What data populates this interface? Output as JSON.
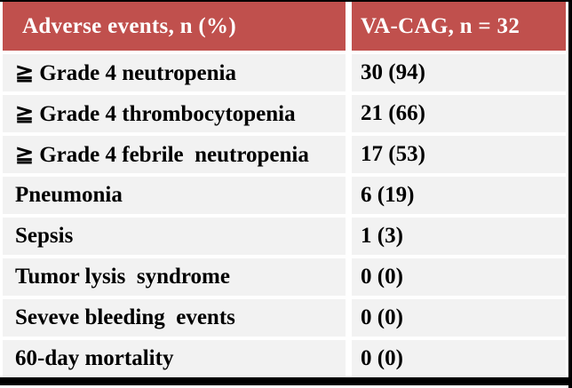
{
  "table": {
    "header": {
      "col1": "Adverse events, n (%)",
      "col2": "VA-CAG, n = 32"
    },
    "rows": [
      {
        "label": "≧ Grade 4 neutropenia",
        "value": "30 (94)"
      },
      {
        "label": "≧ Grade 4 thrombocytopenia",
        "value": "21 (66)"
      },
      {
        "label": "≧ Grade 4 febrile  neutropenia",
        "value": "17 (53)"
      },
      {
        "label": "Pneumonia",
        "value": "6 (19)"
      },
      {
        "label": "Sepsis",
        "value": "1 (3)"
      },
      {
        "label": "Tumor lysis  syndrome",
        "value": "0 (0)"
      },
      {
        "label": "Seveve bleeding  events",
        "value": "0 (0)"
      },
      {
        "label": "60-day mortality",
        "value": "0 (0)"
      }
    ]
  },
  "colors": {
    "header_bg": "#C0504D",
    "header_text": "#FFFFFF",
    "row_bg": "#F2F2F2",
    "row_text": "#000000",
    "gap": "#FFFFFF",
    "frame": "#000000"
  },
  "chart_data": {
    "type": "table",
    "title": "Adverse events, n (%)",
    "columns": [
      "Adverse events, n (%)",
      "VA-CAG, n = 32"
    ],
    "cohort_n": 32,
    "rows": [
      {
        "event": "≧ Grade 4 neutropenia",
        "n": 30,
        "percent": 94
      },
      {
        "event": "≧ Grade 4 thrombocytopenia",
        "n": 21,
        "percent": 66
      },
      {
        "event": "≧ Grade 4 febrile neutropenia",
        "n": 17,
        "percent": 53
      },
      {
        "event": "Pneumonia",
        "n": 6,
        "percent": 19
      },
      {
        "event": "Sepsis",
        "n": 1,
        "percent": 3
      },
      {
        "event": "Tumor lysis syndrome",
        "n": 0,
        "percent": 0
      },
      {
        "event": "Seveve bleeding events",
        "n": 0,
        "percent": 0
      },
      {
        "event": "60-day mortality",
        "n": 0,
        "percent": 0
      }
    ]
  }
}
